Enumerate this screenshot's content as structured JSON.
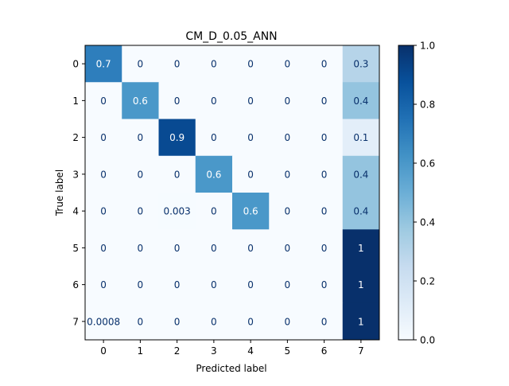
{
  "chart_data": {
    "type": "heatmap",
    "title": "CM_D_0.05_ANN",
    "xlabel": "Predicted label",
    "ylabel": "True label",
    "x_categories": [
      "0",
      "1",
      "2",
      "3",
      "4",
      "5",
      "6",
      "7"
    ],
    "y_categories": [
      "0",
      "1",
      "2",
      "3",
      "4",
      "5",
      "6",
      "7"
    ],
    "cell_labels": [
      [
        "0.7",
        "0",
        "0",
        "0",
        "0",
        "0",
        "0",
        "0.3"
      ],
      [
        "0",
        "0.6",
        "0",
        "0",
        "0",
        "0",
        "0",
        "0.4"
      ],
      [
        "0",
        "0",
        "0.9",
        "0",
        "0",
        "0",
        "0",
        "0.1"
      ],
      [
        "0",
        "0",
        "0",
        "0.6",
        "0",
        "0",
        "0",
        "0.4"
      ],
      [
        "0",
        "0",
        "0.003",
        "0",
        "0.6",
        "0",
        "0",
        "0.4"
      ],
      [
        "0",
        "0",
        "0",
        "0",
        "0",
        "0",
        "0",
        "1"
      ],
      [
        "0",
        "0",
        "0",
        "0",
        "0",
        "0",
        "0",
        "1"
      ],
      [
        "0.0008",
        "0",
        "0",
        "0",
        "0",
        "0",
        "0",
        "1"
      ]
    ],
    "values": [
      [
        0.7,
        0,
        0,
        0,
        0,
        0,
        0,
        0.3
      ],
      [
        0,
        0.6,
        0,
        0,
        0,
        0,
        0,
        0.4
      ],
      [
        0,
        0,
        0.9,
        0,
        0,
        0,
        0,
        0.1
      ],
      [
        0,
        0,
        0,
        0.6,
        0,
        0,
        0,
        0.4
      ],
      [
        0,
        0,
        0.003,
        0,
        0.6,
        0,
        0,
        0.4
      ],
      [
        0,
        0,
        0,
        0,
        0,
        0,
        0,
        1
      ],
      [
        0,
        0,
        0,
        0,
        0,
        0,
        0,
        1
      ],
      [
        0.0008,
        0,
        0,
        0,
        0,
        0,
        0,
        1
      ]
    ],
    "colorbar": {
      "range": [
        0.0,
        1.0
      ],
      "ticks": [
        "0.0",
        "0.2",
        "0.4",
        "0.6",
        "0.8",
        "1.0"
      ],
      "colormap": "Blues"
    },
    "grid": false
  }
}
